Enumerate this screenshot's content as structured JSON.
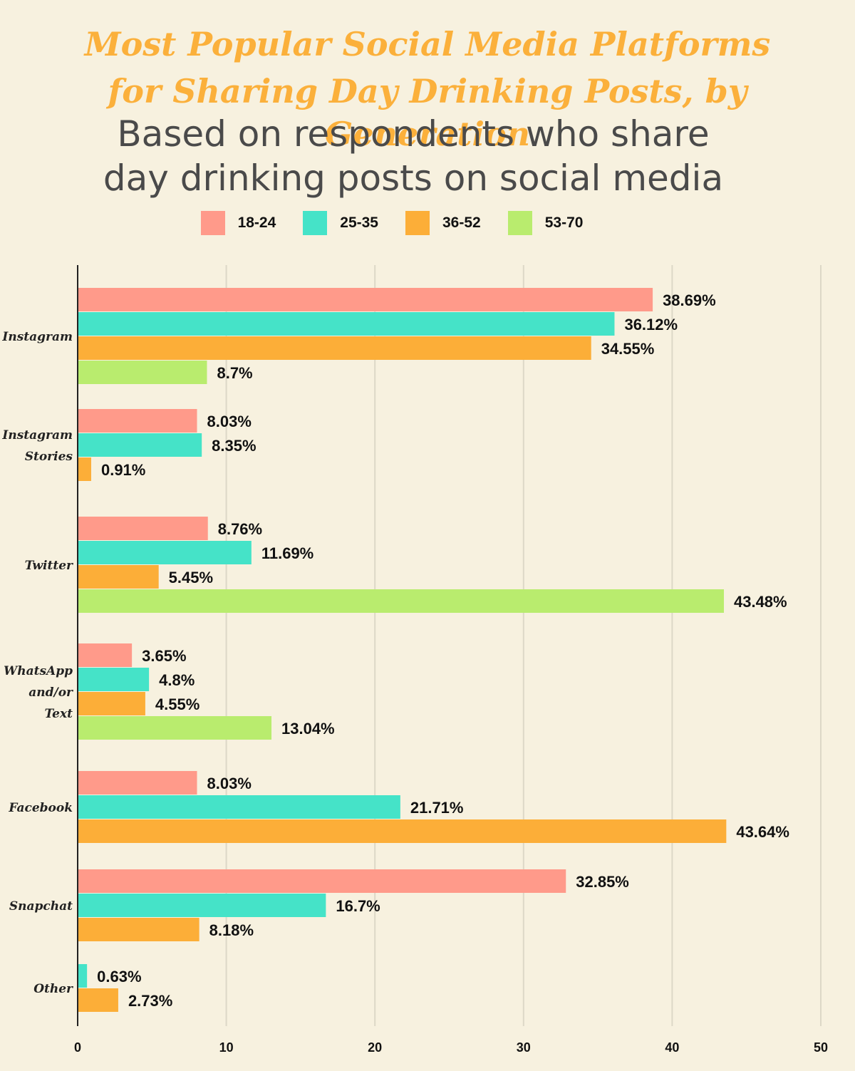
{
  "title_lines": [
    "Most Popular Social Media Platforms",
    "for Sharing Day Drinking Posts, by Generation"
  ],
  "subtitle_lines": [
    "Based on respondents who share",
    "day drinking posts on social media"
  ],
  "colors": {
    "background": "#f7f1df",
    "title": "#fbb03b",
    "grid": "#ddd8c7",
    "axis": "#222222"
  },
  "chart_data": {
    "type": "bar",
    "orientation": "horizontal",
    "title": "Most Popular Social Media Platforms for Sharing Day Drinking Posts, by Generation",
    "subtitle": "Based on respondents who share day drinking posts on social media",
    "xlim": [
      0,
      50
    ],
    "xticks": [
      0,
      10,
      20,
      30,
      40,
      50
    ],
    "grid": true,
    "legend_position": "top-center",
    "value_suffix": "%",
    "categories": [
      {
        "label_lines": [
          "Instagram"
        ],
        "bars": [
          {
            "series": "18-24",
            "value": 38.69,
            "label": "38.69%"
          },
          {
            "series": "25-35",
            "value": 36.12,
            "label": "36.12%"
          },
          {
            "series": "36-52",
            "value": 34.55,
            "label": "34.55%"
          },
          {
            "series": "53-70",
            "value": 8.7,
            "label": "8.7%"
          }
        ]
      },
      {
        "label_lines": [
          "Instagram",
          "Stories"
        ],
        "bars": [
          {
            "series": "18-24",
            "value": 8.03,
            "label": "8.03%"
          },
          {
            "series": "25-35",
            "value": 8.35,
            "label": "8.35%"
          },
          {
            "series": "36-52",
            "value": 0.91,
            "label": "0.91%"
          }
        ]
      },
      {
        "label_lines": [
          "Twitter"
        ],
        "bars": [
          {
            "series": "18-24",
            "value": 8.76,
            "label": "8.76%"
          },
          {
            "series": "25-35",
            "value": 11.69,
            "label": "11.69%"
          },
          {
            "series": "36-52",
            "value": 5.45,
            "label": "5.45%"
          },
          {
            "series": "53-70",
            "value": 43.48,
            "label": "43.48%"
          }
        ]
      },
      {
        "label_lines": [
          "WhatsApp",
          "and/or",
          "Text"
        ],
        "bars": [
          {
            "series": "18-24",
            "value": 3.65,
            "label": "3.65%"
          },
          {
            "series": "25-35",
            "value": 4.8,
            "label": "4.8%"
          },
          {
            "series": "36-52",
            "value": 4.55,
            "label": "4.55%"
          },
          {
            "series": "53-70",
            "value": 13.04,
            "label": "13.04%"
          }
        ]
      },
      {
        "label_lines": [
          "Facebook"
        ],
        "bars": [
          {
            "series": "18-24",
            "value": 8.03,
            "label": "8.03%"
          },
          {
            "series": "25-35",
            "value": 21.71,
            "label": "21.71%"
          },
          {
            "series": "36-52",
            "value": 43.64,
            "label": "43.64%"
          }
        ]
      },
      {
        "label_lines": [
          "Snapchat"
        ],
        "bars": [
          {
            "series": "18-24",
            "value": 32.85,
            "label": "32.85%"
          },
          {
            "series": "25-35",
            "value": 16.7,
            "label": "16.7%"
          },
          {
            "series": "36-52",
            "value": 8.18,
            "label": "8.18%"
          }
        ]
      },
      {
        "label_lines": [
          "Other"
        ],
        "bars": [
          {
            "series": "25-35",
            "value": 0.63,
            "label": "0.63%"
          },
          {
            "series": "36-52",
            "value": 2.73,
            "label": "2.73%"
          }
        ]
      }
    ],
    "series": [
      {
        "name": "18-24",
        "color": "#ff9a8a"
      },
      {
        "name": "25-35",
        "color": "#45e3c8"
      },
      {
        "name": "36-52",
        "color": "#fcae38"
      },
      {
        "name": "53-70",
        "color": "#b9ec6e"
      }
    ]
  }
}
